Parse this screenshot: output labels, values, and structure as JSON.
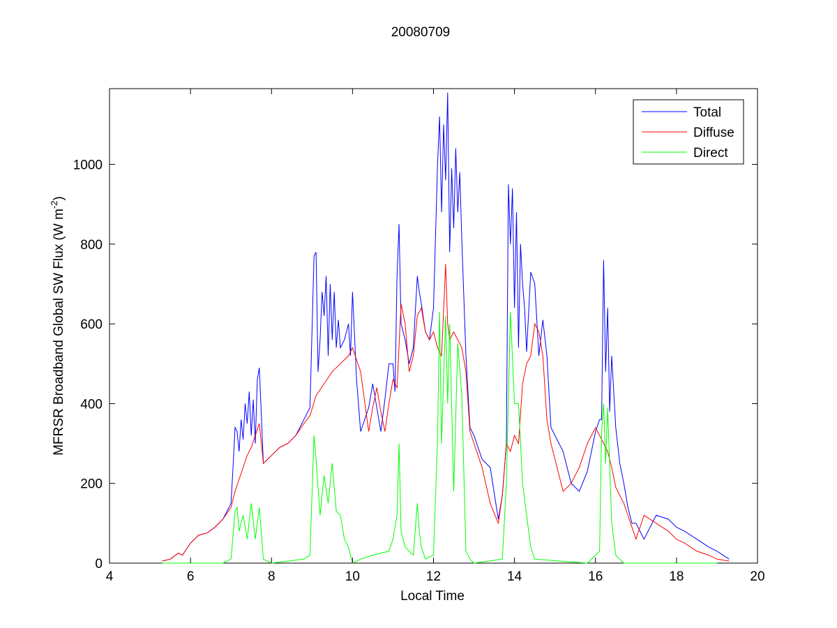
{
  "chart_data": {
    "type": "line",
    "title": "20080709",
    "xlabel": "Local Time",
    "ylabel": "MFRSR Broadband Global SW Flux (W m",
    "ylabel_sup": "-2",
    "ylabel_close": ")",
    "xlim": [
      4,
      20
    ],
    "ylim": [
      0,
      1190
    ],
    "xticks": [
      4,
      6,
      8,
      10,
      12,
      14,
      16,
      18,
      20
    ],
    "yticks": [
      0,
      200,
      400,
      600,
      800,
      1000
    ],
    "grid": false,
    "legend_position": "top-right",
    "series": [
      {
        "name": "Total",
        "color": "#0000ff",
        "x": [
          5.3,
          5.5,
          5.7,
          5.8,
          6.0,
          6.2,
          6.4,
          6.6,
          6.8,
          7.0,
          7.05,
          7.1,
          7.15,
          7.2,
          7.25,
          7.3,
          7.35,
          7.4,
          7.45,
          7.5,
          7.55,
          7.6,
          7.65,
          7.7,
          7.8,
          8.0,
          8.2,
          8.4,
          8.6,
          8.8,
          8.95,
          9.05,
          9.1,
          9.15,
          9.2,
          9.25,
          9.3,
          9.35,
          9.4,
          9.45,
          9.5,
          9.55,
          9.6,
          9.65,
          9.7,
          9.8,
          9.9,
          9.95,
          10.0,
          10.1,
          10.2,
          10.4,
          10.5,
          10.6,
          10.7,
          10.8,
          10.9,
          11.0,
          11.05,
          11.1,
          11.15,
          11.2,
          11.3,
          11.4,
          11.5,
          11.6,
          11.65,
          11.7,
          11.8,
          11.9,
          12.0,
          12.1,
          12.15,
          12.2,
          12.25,
          12.3,
          12.35,
          12.4,
          12.45,
          12.5,
          12.55,
          12.6,
          12.65,
          12.7,
          12.8,
          12.9,
          13.0,
          13.2,
          13.4,
          13.6,
          13.7,
          13.8,
          13.85,
          13.9,
          13.95,
          14.0,
          14.05,
          14.1,
          14.15,
          14.2,
          14.25,
          14.3,
          14.4,
          14.5,
          14.6,
          14.7,
          14.8,
          14.9,
          15.0,
          15.2,
          15.4,
          15.6,
          15.8,
          16.0,
          16.1,
          16.15,
          16.2,
          16.25,
          16.3,
          16.35,
          16.4,
          16.5,
          16.6,
          16.7,
          16.8,
          16.9,
          17.0,
          17.2,
          17.5,
          17.8,
          18.0,
          18.2,
          18.5,
          18.8,
          19.0,
          19.3
        ],
        "y": [
          5,
          10,
          25,
          20,
          50,
          70,
          75,
          90,
          110,
          150,
          240,
          340,
          330,
          280,
          360,
          310,
          400,
          350,
          430,
          320,
          410,
          300,
          460,
          490,
          250,
          270,
          290,
          300,
          320,
          360,
          390,
          770,
          780,
          480,
          560,
          680,
          620,
          720,
          520,
          700,
          560,
          680,
          540,
          610,
          540,
          560,
          600,
          520,
          680,
          460,
          330,
          390,
          450,
          390,
          330,
          410,
          500,
          500,
          430,
          720,
          850,
          600,
          560,
          500,
          540,
          720,
          680,
          650,
          580,
          560,
          640,
          1000,
          1120,
          880,
          1100,
          960,
          1180,
          780,
          990,
          840,
          1040,
          880,
          980,
          810,
          520,
          340,
          320,
          260,
          240,
          110,
          170,
          300,
          950,
          800,
          940,
          640,
          880,
          540,
          800,
          700,
          640,
          530,
          730,
          700,
          520,
          610,
          520,
          340,
          320,
          280,
          200,
          180,
          230,
          330,
          360,
          360,
          760,
          480,
          640,
          380,
          520,
          340,
          250,
          200,
          140,
          100,
          100,
          60,
          120,
          110,
          90,
          80,
          60,
          40,
          30,
          10
        ]
      },
      {
        "name": "Diffuse",
        "color": "#ff0000",
        "x": [
          5.3,
          5.5,
          5.7,
          5.8,
          6.0,
          6.2,
          6.4,
          6.6,
          6.8,
          7.0,
          7.1,
          7.2,
          7.3,
          7.4,
          7.5,
          7.6,
          7.7,
          7.8,
          8.0,
          8.2,
          8.4,
          8.6,
          8.8,
          8.95,
          9.1,
          9.3,
          9.5,
          9.7,
          9.9,
          10.0,
          10.2,
          10.4,
          10.5,
          10.6,
          10.7,
          10.8,
          10.9,
          11.0,
          11.1,
          11.2,
          11.3,
          11.4,
          11.5,
          11.6,
          11.7,
          11.8,
          11.9,
          12.0,
          12.1,
          12.2,
          12.3,
          12.35,
          12.4,
          12.5,
          12.6,
          12.7,
          12.8,
          12.9,
          13.0,
          13.2,
          13.4,
          13.6,
          13.7,
          13.8,
          13.9,
          14.0,
          14.1,
          14.2,
          14.3,
          14.4,
          14.5,
          14.6,
          14.7,
          14.8,
          14.9,
          15.0,
          15.2,
          15.4,
          15.6,
          15.8,
          16.0,
          16.1,
          16.2,
          16.3,
          16.4,
          16.5,
          16.6,
          16.7,
          16.8,
          16.9,
          17.0,
          17.2,
          17.5,
          17.8,
          18.0,
          18.2,
          18.5,
          18.8,
          19.0,
          19.3
        ],
        "y": [
          5,
          10,
          25,
          20,
          50,
          70,
          75,
          90,
          110,
          140,
          180,
          210,
          240,
          270,
          290,
          320,
          350,
          250,
          270,
          290,
          300,
          320,
          350,
          370,
          420,
          450,
          480,
          500,
          520,
          540,
          480,
          330,
          390,
          440,
          380,
          330,
          400,
          460,
          440,
          650,
          600,
          480,
          520,
          620,
          640,
          580,
          560,
          580,
          540,
          520,
          750,
          600,
          560,
          580,
          560,
          540,
          480,
          330,
          300,
          240,
          150,
          100,
          170,
          300,
          280,
          320,
          300,
          450,
          500,
          520,
          600,
          580,
          520,
          360,
          300,
          260,
          180,
          200,
          240,
          300,
          340,
          320,
          300,
          280,
          240,
          190,
          170,
          150,
          120,
          90,
          60,
          120,
          100,
          80,
          60,
          50,
          30,
          20,
          10,
          5
        ]
      },
      {
        "name": "Direct",
        "color": "#00ff00",
        "x": [
          5.3,
          6.0,
          6.8,
          7.0,
          7.1,
          7.15,
          7.2,
          7.3,
          7.4,
          7.5,
          7.6,
          7.7,
          7.8,
          8.0,
          8.8,
          8.95,
          9.05,
          9.1,
          9.2,
          9.3,
          9.4,
          9.5,
          9.6,
          9.7,
          9.8,
          9.9,
          10.0,
          10.2,
          10.5,
          10.9,
          11.0,
          11.1,
          11.15,
          11.2,
          11.3,
          11.5,
          11.6,
          11.65,
          11.7,
          11.8,
          12.0,
          12.1,
          12.15,
          12.2,
          12.3,
          12.35,
          12.4,
          12.5,
          12.6,
          12.7,
          12.8,
          12.9,
          13.0,
          13.7,
          13.8,
          13.9,
          14.0,
          14.1,
          14.2,
          14.3,
          14.4,
          14.5,
          15.8,
          16.0,
          16.1,
          16.15,
          16.2,
          16.25,
          16.3,
          16.4,
          16.5,
          16.6,
          16.7,
          16.8,
          16.9,
          17.0,
          19.0
        ],
        "y": [
          0,
          0,
          0,
          10,
          130,
          140,
          80,
          120,
          60,
          150,
          60,
          140,
          10,
          0,
          10,
          20,
          320,
          260,
          120,
          220,
          150,
          250,
          130,
          120,
          60,
          40,
          0,
          10,
          20,
          30,
          60,
          120,
          300,
          80,
          40,
          20,
          150,
          80,
          40,
          10,
          20,
          310,
          630,
          300,
          620,
          400,
          600,
          180,
          550,
          420,
          30,
          10,
          0,
          10,
          200,
          630,
          400,
          400,
          200,
          120,
          40,
          10,
          0,
          20,
          30,
          330,
          400,
          250,
          390,
          100,
          20,
          10,
          0,
          0,
          0,
          0,
          0
        ]
      }
    ]
  }
}
